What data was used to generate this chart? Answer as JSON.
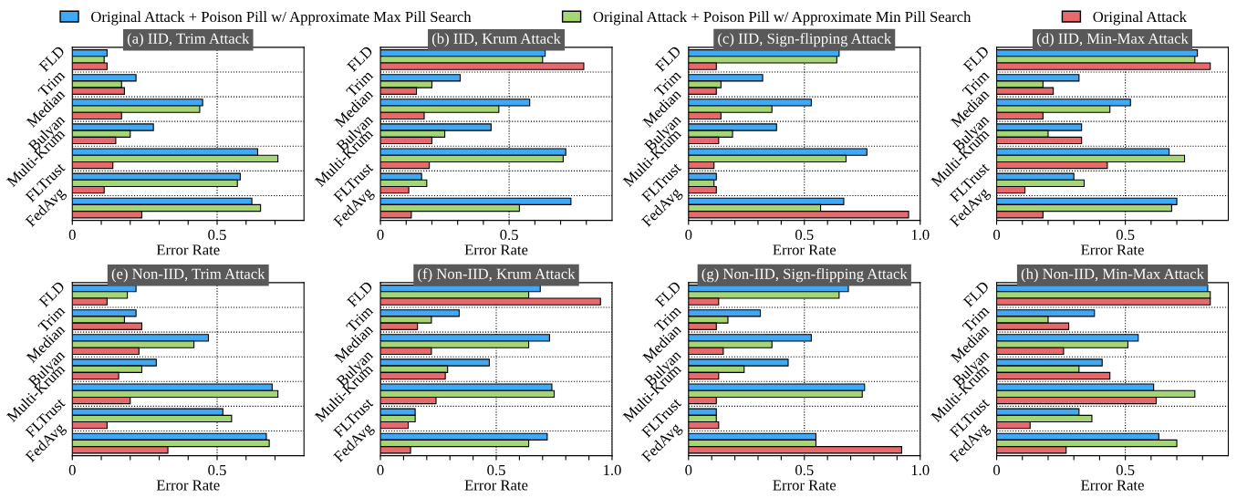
{
  "chart_data": [
    {
      "type": "bar",
      "orientation": "horizontal",
      "title": "(a) IID, Trim Attack",
      "xlabel": "Error Rate",
      "categories": [
        "FLD",
        "Trim",
        "Median",
        "Bulyan",
        "Multi-Krum",
        "FLTrust",
        "FedAvg"
      ],
      "xlim": [
        0,
        0.8
      ],
      "xticks": [
        0,
        {
          "value": 0.1,
          "label": null
        },
        {
          "value": 0.2,
          "label": null
        },
        {
          "value": 0.3,
          "label": null
        },
        {
          "value": 0.4,
          "label": null
        },
        0.5,
        {
          "value": 0.6,
          "label": null
        },
        {
          "value": 0.7,
          "label": null
        }
      ],
      "grid": true,
      "legend": "top",
      "series": [
        {
          "name": "Original Attack + Poison Pill w/ Approximate Max Pill Search",
          "color": "#3fa9f5",
          "values": [
            0.12,
            0.22,
            0.45,
            0.28,
            0.64,
            0.58,
            0.62
          ]
        },
        {
          "name": "Original Attack + Poison Pill w/ Approximate Min Pill Search",
          "color": "#a6d574",
          "values": [
            0.11,
            0.17,
            0.44,
            0.2,
            0.71,
            0.57,
            0.65
          ]
        },
        {
          "name": "Original Attack",
          "color": "#e8696b",
          "values": [
            0.12,
            0.18,
            0.17,
            0.15,
            0.14,
            0.11,
            0.24
          ]
        }
      ]
    },
    {
      "type": "bar",
      "orientation": "horizontal",
      "title": "(b) IID, Krum Attack",
      "xlabel": "Error Rate",
      "categories": [
        "FLD",
        "Trim",
        "Median",
        "Bulyan",
        "Multi-Krum",
        "FLTrust",
        "FedAvg"
      ],
      "xlim": [
        0,
        0.9
      ],
      "xticks": [
        0,
        {
          "value": 0.1,
          "label": null
        },
        {
          "value": 0.2,
          "label": null
        },
        {
          "value": 0.3,
          "label": null
        },
        {
          "value": 0.4,
          "label": null
        },
        0.5,
        {
          "value": 0.6,
          "label": null
        },
        {
          "value": 0.7,
          "label": null
        },
        {
          "value": 0.8,
          "label": null
        }
      ],
      "grid": true,
      "series": [
        {
          "color": "#3fa9f5",
          "values": [
            0.64,
            0.31,
            0.58,
            0.43,
            0.72,
            0.16,
            0.74
          ]
        },
        {
          "color": "#a6d574",
          "values": [
            0.63,
            0.2,
            0.46,
            0.25,
            0.71,
            0.18,
            0.54
          ]
        },
        {
          "color": "#e8696b",
          "values": [
            0.79,
            0.14,
            0.17,
            0.2,
            0.19,
            0.11,
            0.12
          ]
        }
      ]
    },
    {
      "type": "bar",
      "orientation": "horizontal",
      "title": "(c) IID, Sign-flipping Attack",
      "xlabel": "Error Rate",
      "categories": [
        "FLD",
        "Trim",
        "Median",
        "Bulyan",
        "Multi-Krum",
        "FLTrust",
        "FedAvg"
      ],
      "xlim": [
        0,
        1.0
      ],
      "xticks": [
        0,
        {
          "value": 0.1,
          "label": null
        },
        {
          "value": 0.2,
          "label": null
        },
        {
          "value": 0.3,
          "label": null
        },
        {
          "value": 0.4,
          "label": null
        },
        0.5,
        {
          "value": 0.6,
          "label": null
        },
        {
          "value": 0.7,
          "label": null
        },
        {
          "value": 0.8,
          "label": null
        },
        {
          "value": 0.9,
          "label": null
        },
        {
          "value": 1.0,
          "label": "1.0"
        }
      ],
      "grid": true,
      "series": [
        {
          "color": "#3fa9f5",
          "values": [
            0.65,
            0.32,
            0.53,
            0.38,
            0.77,
            0.12,
            0.67
          ]
        },
        {
          "color": "#a6d574",
          "values": [
            0.64,
            0.14,
            0.36,
            0.19,
            0.68,
            0.11,
            0.57
          ]
        },
        {
          "color": "#e8696b",
          "values": [
            0.12,
            0.12,
            0.14,
            0.13,
            0.11,
            0.12,
            0.95
          ]
        }
      ]
    },
    {
      "type": "bar",
      "orientation": "horizontal",
      "title": "(d) IID, Min-Max Attack",
      "xlabel": "Error Rate",
      "categories": [
        "FLD",
        "Trim",
        "Median",
        "Bulyan",
        "Multi-Krum",
        "FLTrust",
        "FedAvg"
      ],
      "xlim": [
        0,
        0.9
      ],
      "xticks": [
        0,
        {
          "value": 0.1,
          "label": null
        },
        {
          "value": 0.2,
          "label": null
        },
        {
          "value": 0.3,
          "label": null
        },
        {
          "value": 0.4,
          "label": null
        },
        0.5,
        {
          "value": 0.6,
          "label": null
        },
        {
          "value": 0.7,
          "label": null
        },
        {
          "value": 0.8,
          "label": null
        }
      ],
      "grid": true,
      "series": [
        {
          "color": "#3fa9f5",
          "values": [
            0.78,
            0.32,
            0.52,
            0.33,
            0.67,
            0.3,
            0.7
          ]
        },
        {
          "color": "#a6d574",
          "values": [
            0.77,
            0.18,
            0.44,
            0.2,
            0.73,
            0.34,
            0.68
          ]
        },
        {
          "color": "#e8696b",
          "values": [
            0.83,
            0.22,
            0.18,
            0.33,
            0.43,
            0.11,
            0.18
          ]
        }
      ]
    },
    {
      "type": "bar",
      "orientation": "horizontal",
      "title": "(e) Non-IID, Trim Attack",
      "xlabel": "Error Rate",
      "categories": [
        "FLD",
        "Trim",
        "Median",
        "Bulyan",
        "Multi-Krum",
        "FLTrust",
        "FedAvg"
      ],
      "xlim": [
        0,
        0.8
      ],
      "xticks": [
        0,
        {
          "value": 0.1,
          "label": null
        },
        {
          "value": 0.2,
          "label": null
        },
        {
          "value": 0.3,
          "label": null
        },
        {
          "value": 0.4,
          "label": null
        },
        0.5,
        {
          "value": 0.6,
          "label": null
        },
        {
          "value": 0.7,
          "label": null
        }
      ],
      "grid": true,
      "series": [
        {
          "color": "#3fa9f5",
          "values": [
            0.22,
            0.22,
            0.47,
            0.29,
            0.69,
            0.52,
            0.67
          ]
        },
        {
          "color": "#a6d574",
          "values": [
            0.19,
            0.18,
            0.42,
            0.24,
            0.71,
            0.55,
            0.68
          ]
        },
        {
          "color": "#e8696b",
          "values": [
            0.12,
            0.24,
            0.23,
            0.16,
            0.2,
            0.12,
            0.33
          ]
        }
      ]
    },
    {
      "type": "bar",
      "orientation": "horizontal",
      "title": "(f) Non-IID, Krum Attack",
      "xlabel": "Error Rate",
      "categories": [
        "FLD",
        "Trim",
        "Median",
        "Bulyan",
        "Multi-Krum",
        "FLTrust",
        "FedAvg"
      ],
      "xlim": [
        0,
        1.0
      ],
      "xticks": [
        0,
        {
          "value": 0.1,
          "label": null
        },
        {
          "value": 0.2,
          "label": null
        },
        {
          "value": 0.3,
          "label": null
        },
        {
          "value": 0.4,
          "label": null
        },
        0.5,
        {
          "value": 0.6,
          "label": null
        },
        {
          "value": 0.7,
          "label": null
        },
        {
          "value": 0.8,
          "label": null
        },
        {
          "value": 0.9,
          "label": null
        },
        {
          "value": 1.0,
          "label": "1.0"
        }
      ],
      "grid": true,
      "series": [
        {
          "color": "#3fa9f5",
          "values": [
            0.69,
            0.34,
            0.73,
            0.47,
            0.74,
            0.15,
            0.72
          ]
        },
        {
          "color": "#a6d574",
          "values": [
            0.64,
            0.22,
            0.64,
            0.29,
            0.75,
            0.15,
            0.64
          ]
        },
        {
          "color": "#e8696b",
          "values": [
            0.95,
            0.16,
            0.22,
            0.28,
            0.24,
            0.12,
            0.13
          ]
        }
      ]
    },
    {
      "type": "bar",
      "orientation": "horizontal",
      "title": "(g) Non-IID, Sign-flipping Attack",
      "xlabel": "Error Rate",
      "categories": [
        "FLD",
        "Trim",
        "Median",
        "Bulyan",
        "Multi-Krum",
        "FLTrust",
        "FedAvg"
      ],
      "xlim": [
        0,
        1.0
      ],
      "xticks": [
        0,
        {
          "value": 0.1,
          "label": null
        },
        {
          "value": 0.2,
          "label": null
        },
        {
          "value": 0.3,
          "label": null
        },
        {
          "value": 0.4,
          "label": null
        },
        0.5,
        {
          "value": 0.6,
          "label": null
        },
        {
          "value": 0.7,
          "label": null
        },
        {
          "value": 0.8,
          "label": null
        },
        {
          "value": 0.9,
          "label": null
        },
        {
          "value": 1.0,
          "label": "1.0"
        }
      ],
      "grid": true,
      "series": [
        {
          "color": "#3fa9f5",
          "values": [
            0.69,
            0.31,
            0.53,
            0.43,
            0.76,
            0.12,
            0.55
          ]
        },
        {
          "color": "#a6d574",
          "values": [
            0.65,
            0.17,
            0.36,
            0.24,
            0.75,
            0.12,
            0.55
          ]
        },
        {
          "color": "#e8696b",
          "values": [
            0.13,
            0.12,
            0.15,
            0.13,
            0.12,
            0.13,
            0.92
          ]
        }
      ]
    },
    {
      "type": "bar",
      "orientation": "horizontal",
      "title": "(h) Non-IID, Min-Max Attack",
      "xlabel": "Error Rate",
      "categories": [
        "FLD",
        "Trim",
        "Median",
        "Bulyan",
        "Multi-Krum",
        "FLTrust",
        "FedAvg"
      ],
      "xlim": [
        0,
        0.9
      ],
      "xticks": [
        0,
        {
          "value": 0.1,
          "label": null
        },
        {
          "value": 0.2,
          "label": null
        },
        {
          "value": 0.3,
          "label": null
        },
        {
          "value": 0.4,
          "label": null
        },
        0.5,
        {
          "value": 0.6,
          "label": null
        },
        {
          "value": 0.7,
          "label": null
        },
        {
          "value": 0.8,
          "label": null
        }
      ],
      "grid": true,
      "series": [
        {
          "color": "#3fa9f5",
          "values": [
            0.82,
            0.38,
            0.55,
            0.41,
            0.61,
            0.32,
            0.63
          ]
        },
        {
          "color": "#a6d574",
          "values": [
            0.83,
            0.2,
            0.51,
            0.32,
            0.77,
            0.37,
            0.7
          ]
        },
        {
          "color": "#e8696b",
          "values": [
            0.83,
            0.28,
            0.26,
            0.44,
            0.62,
            0.13,
            0.27
          ]
        }
      ]
    }
  ]
}
